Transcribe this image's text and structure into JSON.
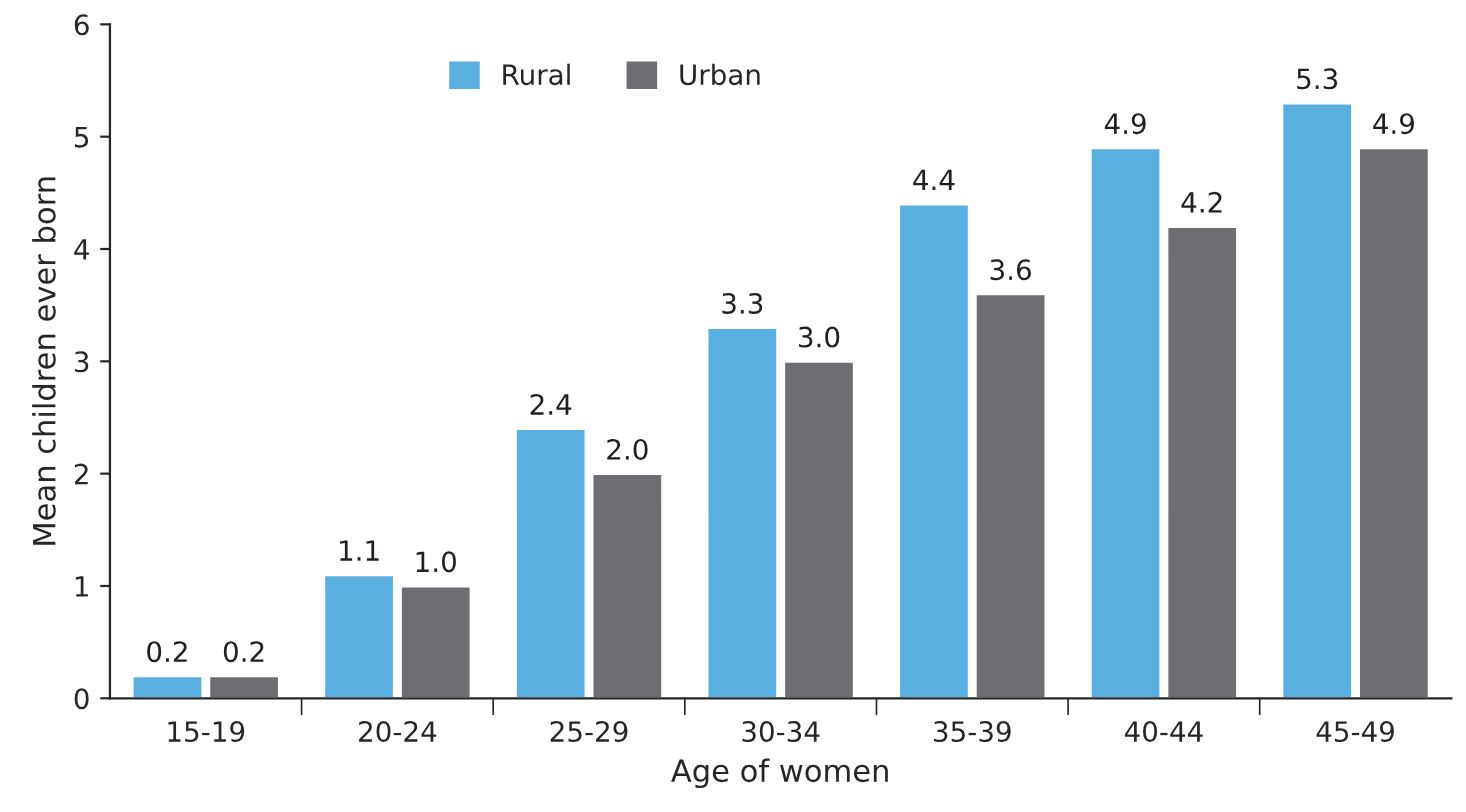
{
  "chart_data": {
    "type": "bar",
    "xlabel": "Age of women",
    "ylabel": "Mean children ever born",
    "categories": [
      "15-19",
      "20-24",
      "25-29",
      "30-34",
      "35-39",
      "40-44",
      "45-49"
    ],
    "series": [
      {
        "name": "Rural",
        "color": "#5aafe1",
        "values": [
          0.2,
          1.1,
          2.4,
          3.3,
          4.4,
          4.9,
          5.3
        ],
        "value_labels": [
          "0.2",
          "1.1",
          "2.4",
          "3.3",
          "4.4",
          "4.9",
          "5.3"
        ]
      },
      {
        "name": "Urban",
        "color": "#6d6e71",
        "values": [
          0.2,
          1.0,
          2.0,
          3.0,
          3.6,
          4.2,
          4.9
        ],
        "value_labels": [
          "0.2",
          "1.0",
          "2.0",
          "3.0",
          "3.6",
          "4.2",
          "4.9"
        ]
      }
    ],
    "ylim": [
      0,
      6
    ],
    "yticks": [
      0,
      1,
      2,
      3,
      4,
      5,
      6
    ],
    "grid": false,
    "legend": "top"
  }
}
